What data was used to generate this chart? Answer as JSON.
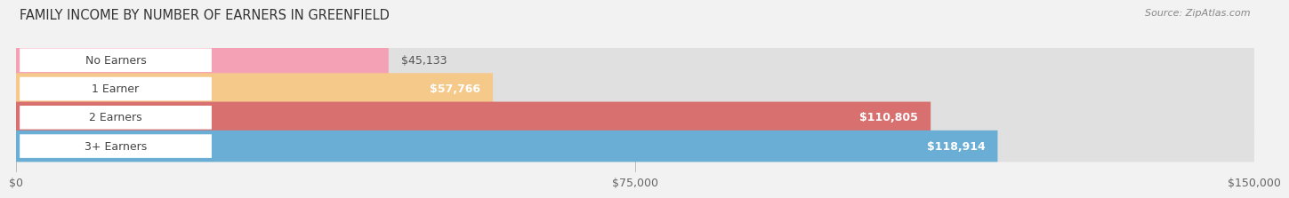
{
  "title": "FAMILY INCOME BY NUMBER OF EARNERS IN GREENFIELD",
  "source": "Source: ZipAtlas.com",
  "categories": [
    "No Earners",
    "1 Earner",
    "2 Earners",
    "3+ Earners"
  ],
  "values": [
    45133,
    57766,
    110805,
    118914
  ],
  "labels": [
    "$45,133",
    "$57,766",
    "$110,805",
    "$118,914"
  ],
  "bar_colors": [
    "#f4a0b5",
    "#f5c98a",
    "#d97070",
    "#6aaed6"
  ],
  "fig_bg_color": "#f2f2f2",
  "bar_bg_color": "#e0e0e0",
  "xmax": 150000,
  "xticks": [
    0,
    75000,
    150000
  ],
  "xtick_labels": [
    "$0",
    "$75,000",
    "$150,000"
  ],
  "title_fontsize": 10.5,
  "source_fontsize": 8,
  "label_fontsize": 9,
  "value_fontsize": 9,
  "bar_height": 0.55
}
